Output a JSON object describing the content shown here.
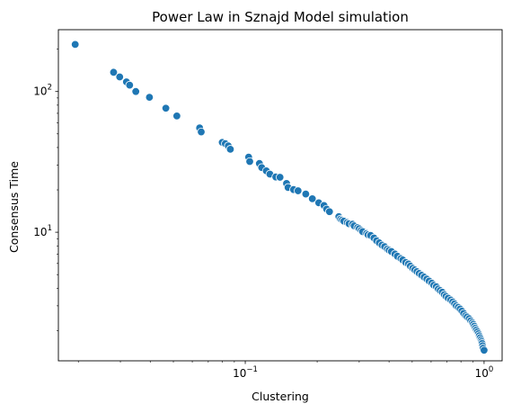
{
  "chart_data": {
    "type": "scatter",
    "title": "Power Law in Sznajd Model simulation",
    "xlabel": "Clustering",
    "ylabel": "Consensus Time",
    "xscale": "log",
    "yscale": "log",
    "xlim": [
      0.0165,
      1.19
    ],
    "ylim": [
      1.22,
      275
    ],
    "x_ticks": [
      {
        "value": 0.1,
        "base": "10",
        "exp": "−1"
      },
      {
        "value": 1,
        "base": "10",
        "exp": "0"
      }
    ],
    "y_ticks": [
      {
        "value": 10,
        "base": "10",
        "exp": "1"
      },
      {
        "value": 100,
        "base": "10",
        "exp": "2"
      }
    ],
    "grid": false,
    "marker_color": "#1f77b4",
    "series": [
      {
        "x": [
          0.0194,
          0.0281,
          0.0298,
          0.0318,
          0.0328,
          0.0348,
          0.0397,
          0.0465,
          0.0517,
          0.0644,
          0.0654,
          0.0801,
          0.0825,
          0.0849,
          0.0866,
          0.1033,
          0.1044,
          0.1146,
          0.1172,
          0.1225,
          0.1268,
          0.1342,
          0.1398,
          0.1489,
          0.1511,
          0.1593,
          0.1664,
          0.1792,
          0.1909,
          0.2031,
          0.2137,
          0.2192,
          0.2252,
          0.2465,
          0.2505,
          0.2546,
          0.2587,
          0.2674,
          0.2718,
          0.2813,
          0.2858,
          0.2955,
          0.2999,
          0.3058,
          0.3102,
          0.3221,
          0.3267,
          0.3348,
          0.3458,
          0.3549,
          0.3642,
          0.3738,
          0.3834,
          0.3934,
          0.4003,
          0.4092,
          0.4235,
          0.4335,
          0.4483,
          0.4567,
          0.4697,
          0.4823,
          0.4913,
          0.5025,
          0.5125,
          0.5236,
          0.5352,
          0.5476,
          0.5612,
          0.5758,
          0.5893,
          0.6042,
          0.6158,
          0.6307,
          0.6428,
          0.6552,
          0.6682,
          0.6811,
          0.6925,
          0.7075,
          0.7251,
          0.7392,
          0.7523,
          0.7645,
          0.7797,
          0.7937,
          0.8075,
          0.8214,
          0.8366,
          0.8493,
          0.8658,
          0.8791,
          0.8924,
          0.9013,
          0.9107,
          0.9198,
          0.9287,
          0.9381,
          0.9473,
          0.9549,
          0.9627,
          0.9706,
          0.9764,
          0.9812,
          0.9857,
          0.9903,
          1.0
        ],
        "y": [
          216,
          137,
          127,
          117,
          111,
          100,
          91,
          76.1,
          67.0,
          55.1,
          51.6,
          43.5,
          42.6,
          41.1,
          38.9,
          34.2,
          31.8,
          30.8,
          28.8,
          27.3,
          25.9,
          24.7,
          24.6,
          22.2,
          20.8,
          20.1,
          19.7,
          18.7,
          17.3,
          16.2,
          15.5,
          14.6,
          14.0,
          12.9,
          12.4,
          12.2,
          12.0,
          11.7,
          11.5,
          11.4,
          11.1,
          10.8,
          10.6,
          10.3,
          10.1,
          9.8,
          9.6,
          9.5,
          9.1,
          8.7,
          8.4,
          8.1,
          7.9,
          7.6,
          7.45,
          7.3,
          7.0,
          6.75,
          6.5,
          6.35,
          6.1,
          5.95,
          5.75,
          5.55,
          5.4,
          5.25,
          5.1,
          4.95,
          4.8,
          4.65,
          4.5,
          4.35,
          4.2,
          4.1,
          3.95,
          3.85,
          3.75,
          3.6,
          3.5,
          3.4,
          3.3,
          3.2,
          3.1,
          3.0,
          2.93,
          2.85,
          2.75,
          2.65,
          2.55,
          2.5,
          2.43,
          2.35,
          2.28,
          2.22,
          2.15,
          2.08,
          2.02,
          1.96,
          1.9,
          1.84,
          1.78,
          1.72,
          1.67,
          1.62,
          1.56,
          1.5,
          1.45
        ]
      }
    ]
  }
}
